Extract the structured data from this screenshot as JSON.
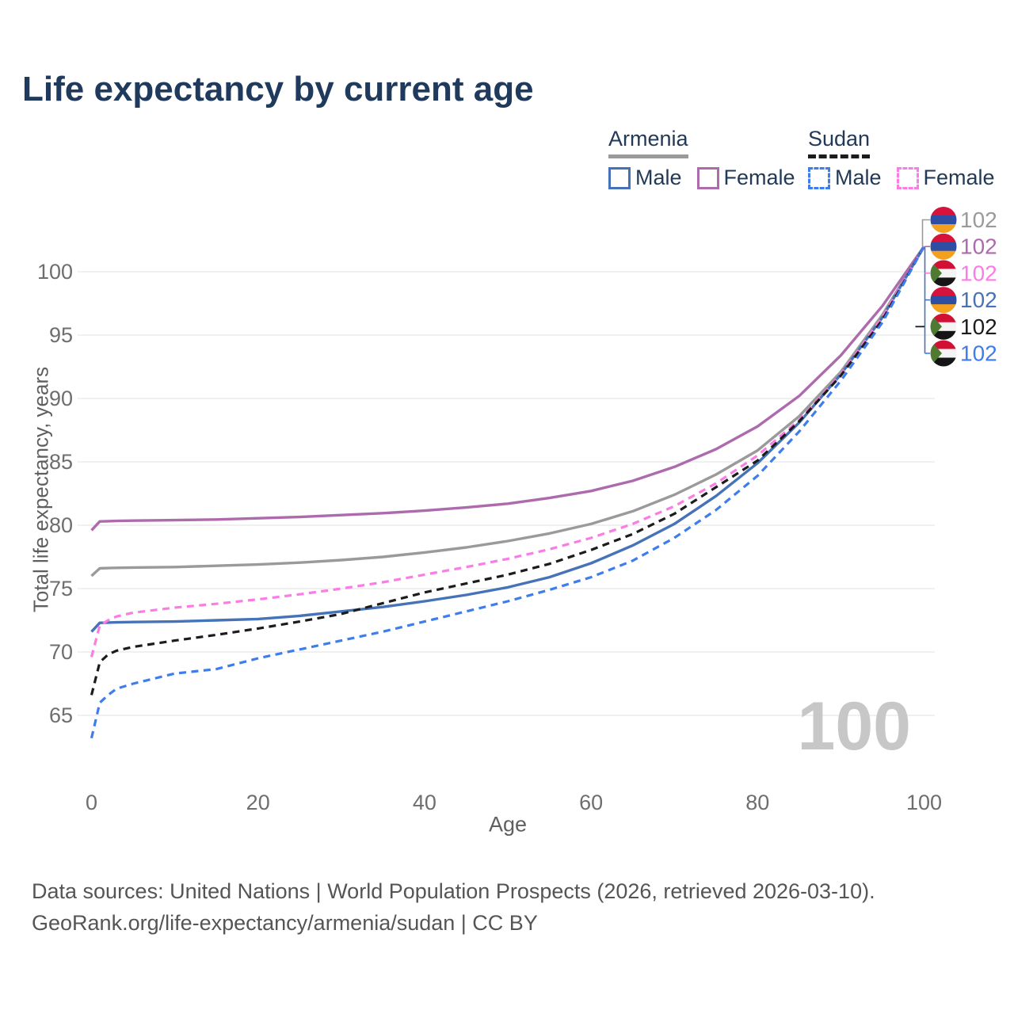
{
  "page": {
    "title": "Life expectancy by current age",
    "watermark": "100",
    "footer_line1": "Data sources: United Nations | World Population Prospects (2026, retrieved 2026-03-10).",
    "footer_line2": "GeoRank.org/life-expectancy/armenia/sudan | CC BY"
  },
  "legend": {
    "groups": [
      {
        "label": "Armenia",
        "underline_style": "solid",
        "underline_color": "#9a9a9a",
        "items": [
          {
            "label": "Male",
            "color": "#4673b8",
            "dash": false
          },
          {
            "label": "Female",
            "color": "#ad6bae",
            "dash": false
          }
        ]
      },
      {
        "label": "Sudan",
        "underline_style": "dashed",
        "underline_color": "#1c1c1c",
        "items": [
          {
            "label": "Male",
            "color": "#3d7ded",
            "dash": true
          },
          {
            "label": "Female",
            "color": "#fb7ce4",
            "dash": true
          }
        ]
      }
    ]
  },
  "chart_data": {
    "type": "line",
    "title": "Life expectancy by current age",
    "xlabel": "Age",
    "ylabel": "Total life expectancy, years",
    "xlim": [
      0,
      100
    ],
    "ylim": [
      63,
      103
    ],
    "xticks": [
      0,
      20,
      40,
      60,
      80,
      100
    ],
    "yticks": [
      65,
      70,
      75,
      80,
      85,
      90,
      95,
      100
    ],
    "grid": "horizontal",
    "legend_position": "top-right",
    "colors": {
      "armenia_all": "#9a9a9a",
      "armenia_female": "#ad6bae",
      "armenia_male": "#4673b8",
      "sudan_all": "#1c1c1c",
      "sudan_female": "#fb7ce4",
      "sudan_male": "#3d7ded",
      "grid": "#ececec",
      "tick_text": "#6e6e6e"
    },
    "ages": [
      0,
      1,
      2,
      3,
      5,
      10,
      15,
      20,
      25,
      30,
      35,
      40,
      45,
      50,
      55,
      60,
      65,
      70,
      75,
      80,
      85,
      90,
      95,
      100
    ],
    "series": [
      {
        "name": "Armenia All",
        "country": "Armenia",
        "sex": "All",
        "color": "#9a9a9a",
        "dash": false,
        "end_value": 102,
        "values": [
          76.0,
          76.6,
          76.62,
          76.64,
          76.66,
          76.7,
          76.8,
          76.9,
          77.05,
          77.25,
          77.5,
          77.85,
          78.25,
          78.75,
          79.35,
          80.1,
          81.1,
          82.4,
          84.0,
          85.9,
          88.6,
          92.1,
          96.6,
          102
        ]
      },
      {
        "name": "Armenia Female",
        "country": "Armenia",
        "sex": "Female",
        "color": "#ad6bae",
        "dash": false,
        "end_value": 102,
        "values": [
          79.6,
          80.3,
          80.32,
          80.34,
          80.36,
          80.4,
          80.45,
          80.55,
          80.65,
          80.8,
          80.95,
          81.15,
          81.4,
          81.7,
          82.15,
          82.7,
          83.5,
          84.6,
          86.0,
          87.8,
          90.2,
          93.4,
          97.3,
          102
        ]
      },
      {
        "name": "Sudan Female",
        "country": "Sudan",
        "sex": "Female",
        "color": "#fb7ce4",
        "dash": true,
        "end_value": 102,
        "values": [
          69.6,
          72.1,
          72.5,
          72.8,
          73.1,
          73.5,
          73.8,
          74.15,
          74.55,
          75.0,
          75.5,
          76.1,
          76.7,
          77.35,
          78.1,
          79.0,
          80.1,
          81.5,
          83.3,
          85.5,
          88.3,
          91.9,
          96.4,
          102
        ]
      },
      {
        "name": "Armenia Male",
        "country": "Armenia",
        "sex": "Male",
        "color": "#4673b8",
        "dash": false,
        "end_value": 102,
        "values": [
          71.6,
          72.3,
          72.32,
          72.34,
          72.36,
          72.4,
          72.5,
          72.6,
          72.85,
          73.2,
          73.55,
          74.0,
          74.5,
          75.1,
          75.9,
          77.0,
          78.4,
          80.1,
          82.3,
          84.9,
          88.1,
          91.9,
          96.4,
          102
        ]
      },
      {
        "name": "Sudan All",
        "country": "Sudan",
        "sex": "All",
        "color": "#1c1c1c",
        "dash": true,
        "end_value": 102,
        "values": [
          66.6,
          69.2,
          69.8,
          70.1,
          70.4,
          70.9,
          71.35,
          71.85,
          72.4,
          73.0,
          73.85,
          74.7,
          75.4,
          76.1,
          76.95,
          78.05,
          79.3,
          80.9,
          83.0,
          85.1,
          88.2,
          91.8,
          96.2,
          102
        ]
      },
      {
        "name": "Sudan Male",
        "country": "Sudan",
        "sex": "Male",
        "color": "#3d7ded",
        "dash": true,
        "end_value": 102,
        "values": [
          63.2,
          66.0,
          66.6,
          67.1,
          67.5,
          68.3,
          68.65,
          69.5,
          70.2,
          70.9,
          71.6,
          72.4,
          73.2,
          74.0,
          74.9,
          75.9,
          77.2,
          79.0,
          81.2,
          83.9,
          87.4,
          91.4,
          96.0,
          102
        ]
      }
    ],
    "end_labels": [
      {
        "flag": "armenia",
        "value": "102",
        "color": "#9a9a9a"
      },
      {
        "flag": "armenia",
        "value": "102",
        "color": "#ad6bae"
      },
      {
        "flag": "sudan",
        "value": "102",
        "color": "#fb7ce4"
      },
      {
        "flag": "armenia",
        "value": "102",
        "color": "#4673b8"
      },
      {
        "flag": "sudan",
        "value": "102",
        "color": "#1c1c1c"
      },
      {
        "flag": "sudan",
        "value": "102",
        "color": "#3d7ded"
      }
    ],
    "flag_colors": {
      "armenia": [
        "#d7133c",
        "#2d4ea3",
        "#f2a01e"
      ],
      "sudan_stripes": [
        "#d21034",
        "#f4f4f4",
        "#151515"
      ],
      "sudan_triangle": "#4e7a31"
    }
  }
}
